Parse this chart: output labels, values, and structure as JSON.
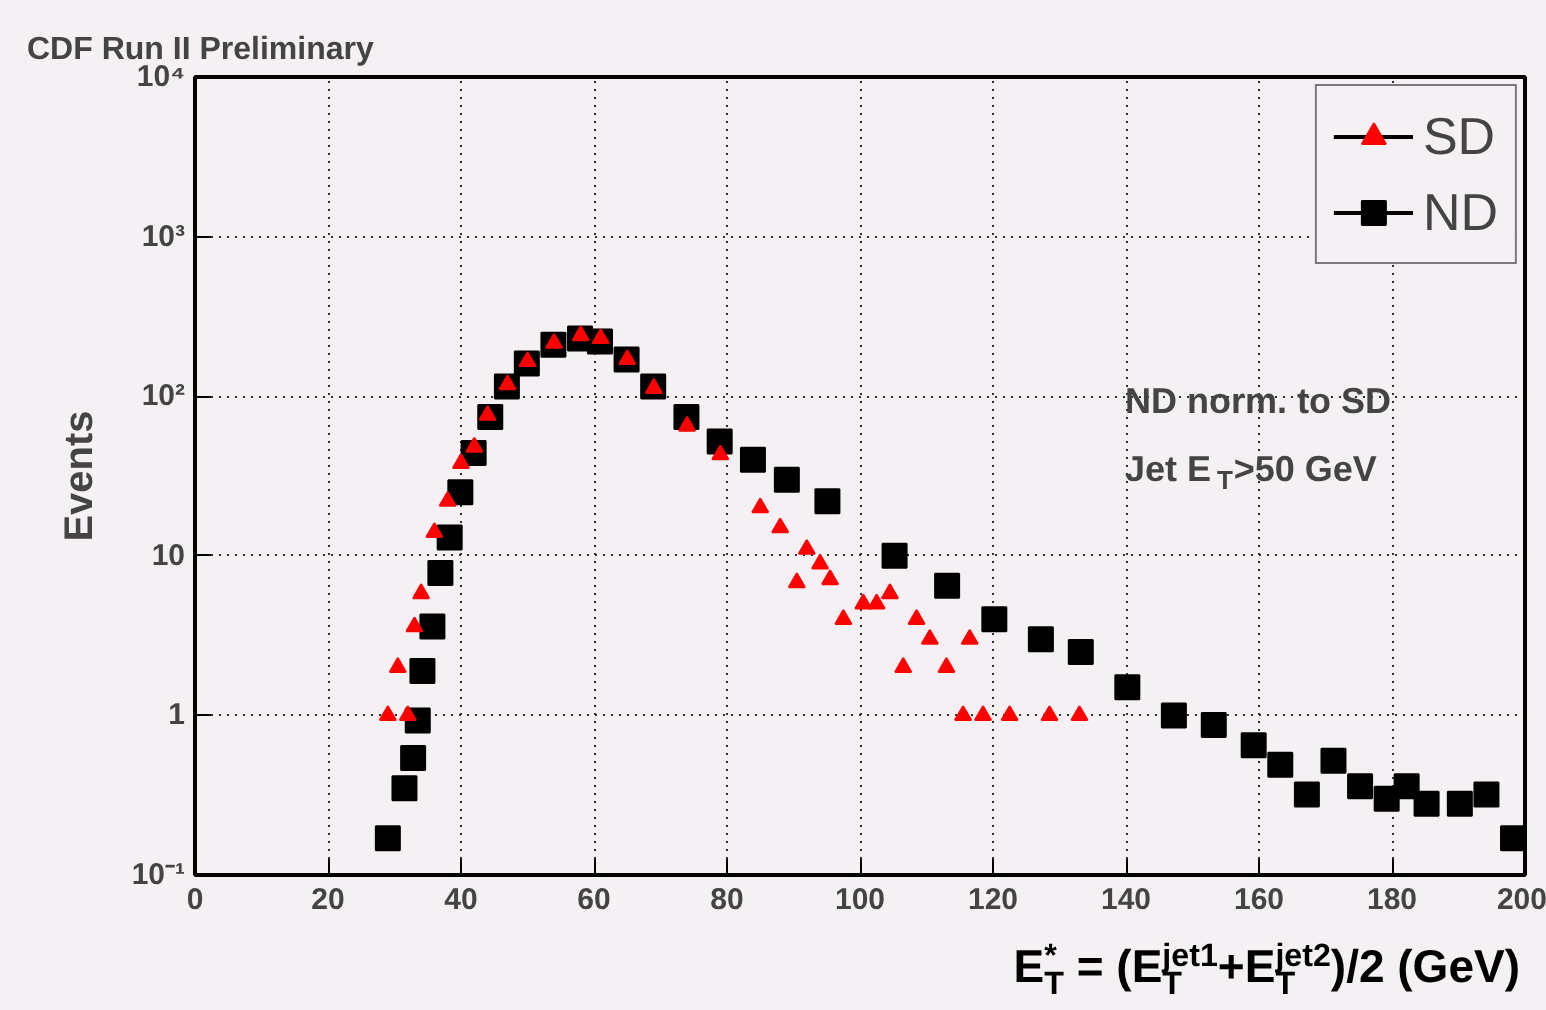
{
  "chart_data": {
    "type": "scatter",
    "title": "CDF Run II Preliminary",
    "xlabel": "E$^{*}$$_{T}$ = (E$^{jet1}$$_{T}$+E$^{jet2}$$_{T}$)/2 (GeV)",
    "ylabel": "Events",
    "annotations": [
      "ND norm. to SD",
      "Jet E$_{T}$>50 GeV"
    ],
    "log": "y",
    "grid": true,
    "legend": "top right",
    "xlim": [
      0,
      200
    ],
    "xticks": [
      0,
      20,
      40,
      60,
      80,
      100,
      120,
      140,
      160,
      180,
      200
    ],
    "ylim": [
      0.1,
      10000
    ],
    "yticks": [
      {
        "value": 0.1,
        "label": "10⁻¹"
      },
      1,
      10,
      {
        "value": 100,
        "label": "10²"
      },
      {
        "value": 1000,
        "label": "10³"
      },
      {
        "value": 10000,
        "label": "10⁴"
      }
    ],
    "series": [
      {
        "name": "SD",
        "color": "#ff0000",
        "marker": "triangle",
        "x": [
          29,
          30.5,
          32,
          33,
          34,
          36,
          38,
          40,
          42,
          44,
          47,
          50,
          54,
          58,
          61,
          65,
          69,
          74,
          79,
          85,
          88,
          90.5,
          92,
          94,
          95.5,
          97.5,
          100.5,
          102.5,
          104.5,
          106.5,
          108.5,
          110.5,
          113,
          115.5,
          116.5,
          118.5,
          122.5,
          128.5,
          133
        ],
        "values": [
          1.0,
          2.0,
          1.0,
          3.6,
          5.8,
          14,
          22,
          38,
          48,
          76,
          118,
          165,
          215,
          240,
          230,
          170,
          112,
          65,
          43,
          20,
          15,
          6.8,
          11,
          8.9,
          7.1,
          4,
          5,
          5,
          5.8,
          2,
          4,
          3,
          2,
          1,
          3,
          1,
          1,
          1,
          1
        ]
      },
      {
        "name": "ND",
        "color": "#000000",
        "marker": "square",
        "x": [
          29,
          31.5,
          32.8,
          33.5,
          34.2,
          35.7,
          36.9,
          38.3,
          39.9,
          41.9,
          44.4,
          46.9,
          49.9,
          53.9,
          57.9,
          60.9,
          64.9,
          68.9,
          73.9,
          78.9,
          83.9,
          89,
          95.1,
          105.2,
          113.1,
          120.2,
          127.2,
          133.2,
          140.2,
          147.2,
          153.2,
          159.2,
          163.2,
          167.2,
          171.2,
          175.2,
          179.2,
          182.2,
          185.2,
          190.2,
          194.2,
          198.2
        ],
        "values": [
          0.17,
          0.35,
          0.54,
          0.93,
          1.9,
          3.6,
          7.8,
          13,
          25,
          44,
          74,
          115,
          160,
          210,
          230,
          220,
          170,
          115,
          74,
          52,
          40,
          30,
          22,
          10,
          6.5,
          4,
          3,
          2.5,
          1.5,
          1.0,
          0.87,
          0.65,
          0.49,
          0.32,
          0.52,
          0.36,
          0.3,
          0.36,
          0.28,
          0.28,
          0.32,
          0.17
        ]
      }
    ]
  }
}
